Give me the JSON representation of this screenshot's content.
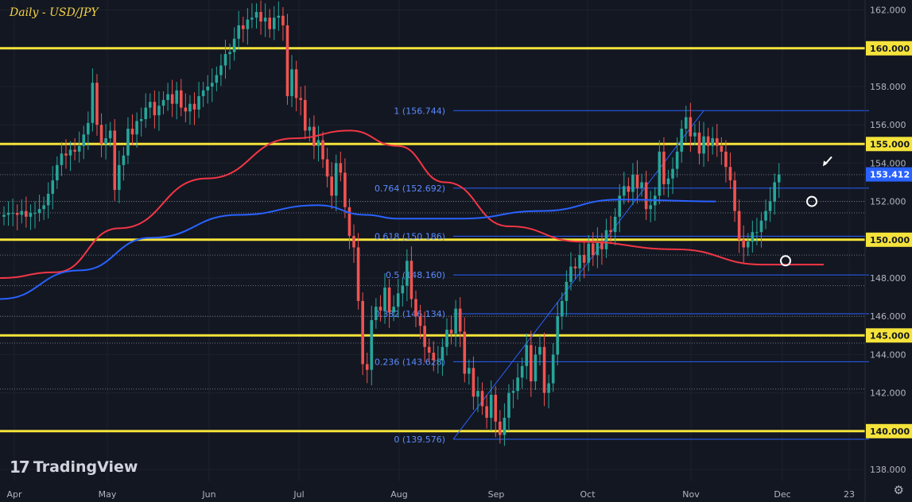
{
  "header": {
    "title": "Daily - USD/JPY"
  },
  "brand": {
    "name": "TradingView",
    "logo_icon": "tradingview-logo-icon"
  },
  "settings_icon": "gear-icon",
  "colors": {
    "background": "#131722",
    "level_line": "#f5e33b",
    "fib_line": "#2962ff",
    "ma_short": "#f23645",
    "ma_long": "#2962ff",
    "up_candle": "#26a69a",
    "down_candle": "#ef5350",
    "last_price_label": "#2962ff"
  },
  "chart_data": {
    "type": "candlestick",
    "title": "Daily - USD/JPY",
    "y_range": [
      137.5,
      162.5
    ],
    "y_ticks": [
      138.0,
      140.0,
      142.0,
      144.0,
      146.0,
      148.0,
      150.0,
      152.0,
      154.0,
      156.0,
      158.0,
      160.0,
      162.0
    ],
    "x_ticks": [
      "Apr",
      "May",
      "Jun",
      "Jul",
      "Aug",
      "Sep",
      "Oct",
      "Nov",
      "Dec",
      "23"
    ],
    "last_price": 153.412,
    "key_levels": [
      160.0,
      155.0,
      150.0,
      145.0,
      140.0
    ],
    "fibonacci": [
      {
        "label": "1 (156.744)",
        "value": 156.744
      },
      {
        "label": "0.764 (152.692)",
        "value": 152.692
      },
      {
        "label": "0.618 (150.186)",
        "value": 150.186
      },
      {
        "label": "0.5 (148.160)",
        "value": 148.16
      },
      {
        "label": "0.382 (146.134)",
        "value": 146.134
      },
      {
        "label": "0.236 (143.628)",
        "value": 143.628
      },
      {
        "label": "0 (139.576)",
        "value": 139.576
      }
    ],
    "dotted_levels": [
      153.4,
      152.0,
      151.4,
      149.2,
      147.6,
      146.0,
      144.6,
      142.2
    ],
    "closes": [
      151.3,
      151.4,
      151.4,
      151.3,
      151.5,
      151.2,
      151.4,
      151.4,
      151.6,
      151.8,
      152.4,
      153.1,
      153.9,
      154.5,
      154.4,
      154.7,
      154.6,
      154.9,
      155.5,
      156.1,
      158.2,
      156.0,
      155.0,
      155.3,
      155.7,
      152.6,
      153.9,
      154.4,
      155.8,
      155.5,
      156.2,
      156.3,
      156.9,
      157.2,
      156.5,
      157.0,
      157.3,
      157.6,
      157.1,
      157.8,
      156.9,
      156.7,
      157.1,
      156.8,
      157.5,
      157.8,
      158.0,
      158.2,
      158.6,
      159.1,
      159.7,
      159.8,
      160.5,
      161.2,
      161.0,
      161.5,
      161.6,
      161.9,
      161.4,
      161.6,
      161.0,
      161.6,
      161.7,
      161.2,
      157.5,
      158.9,
      157.4,
      157.3,
      155.7,
      155.9,
      154.9,
      155.2,
      154.2,
      153.3,
      152.3,
      154.0,
      153.5,
      151.7,
      150.2,
      149.6,
      146.8,
      143.5,
      143.2,
      145.8,
      146.5,
      146.3,
      147.5,
      146.2,
      146.5,
      147.2,
      147.6,
      148.9,
      146.9,
      146.0,
      145.5,
      144.4,
      144.1,
      143.7,
      143.7,
      144.4,
      145.3,
      145.1,
      146.4,
      145.2,
      143.0,
      143.3,
      141.8,
      142.1,
      141.3,
      140.7,
      141.9,
      140.5,
      139.8,
      140.7,
      142.0,
      142.1,
      142.8,
      143.4,
      144.5,
      142.6,
      144.0,
      144.4,
      142.0,
      142.5,
      144.0,
      146.0,
      146.8,
      147.8,
      148.6,
      148.5,
      149.2,
      148.8,
      149.8,
      149.2,
      149.9,
      149.5,
      150.5,
      150.4,
      151.2,
      152.3,
      152.8,
      152.5,
      153.4,
      152.7,
      153.0,
      151.6,
      151.8,
      152.3,
      154.6,
      152.9,
      153.2,
      153.7,
      154.6,
      155.8,
      156.4,
      155.4,
      155.6,
      154.5,
      155.4,
      154.9,
      155.3,
      154.9,
      154.6,
      153.8,
      153.1,
      151.5,
      150.0,
      149.6,
      149.9,
      150.4,
      150.4,
      151.0,
      151.5,
      152.0,
      153.0,
      153.4
    ],
    "series": [
      {
        "type": "moving-average",
        "color": "#f23645",
        "values": [
          148.0,
          148.3,
          150.6,
          153.2,
          155.3,
          155.7,
          154.9,
          153.0,
          150.7,
          149.9,
          149.5,
          148.7,
          148.7
        ]
      },
      {
        "type": "moving-average",
        "color": "#2962ff",
        "values": [
          146.9,
          148.4,
          150.1,
          151.3,
          151.8,
          151.3,
          151.1,
          151.1,
          151.5,
          152.1,
          152.0
        ]
      }
    ],
    "annotations": [
      {
        "type": "circle",
        "value": 148.9
      },
      {
        "type": "circle",
        "value": 152.0
      },
      {
        "type": "arrow",
        "value": 154.0
      }
    ]
  }
}
